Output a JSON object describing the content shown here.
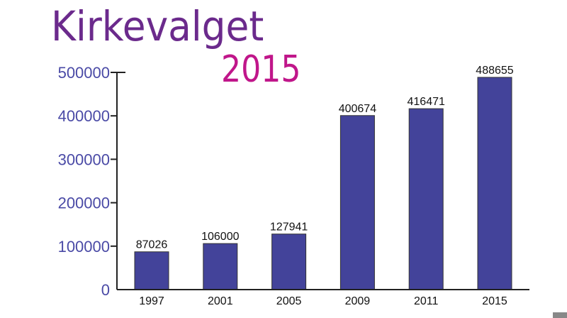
{
  "logo": {
    "word": "Kirkevalget",
    "year": "2015"
  },
  "colors": {
    "bar": "#43439a",
    "axis_label": "#4a4aa6",
    "axis": "#222222",
    "logo_word": "#6b2a8c",
    "logo_year": "#c0168a"
  },
  "chart_data": {
    "type": "bar",
    "title": "Kirkevalget 2015",
    "categories": [
      "1997",
      "2001",
      "2005",
      "2009",
      "2011",
      "2015"
    ],
    "values": [
      87026,
      106000,
      127941,
      400674,
      416471,
      488655
    ],
    "data_labels": [
      "87026",
      "106000",
      "127941",
      "400674",
      "416471",
      "488655"
    ],
    "yticks": [
      "0",
      "100000",
      "200000",
      "300000",
      "400000",
      "500000"
    ],
    "ylim": [
      0,
      500000
    ],
    "xlabel": "",
    "ylabel": "",
    "grid": false
  }
}
